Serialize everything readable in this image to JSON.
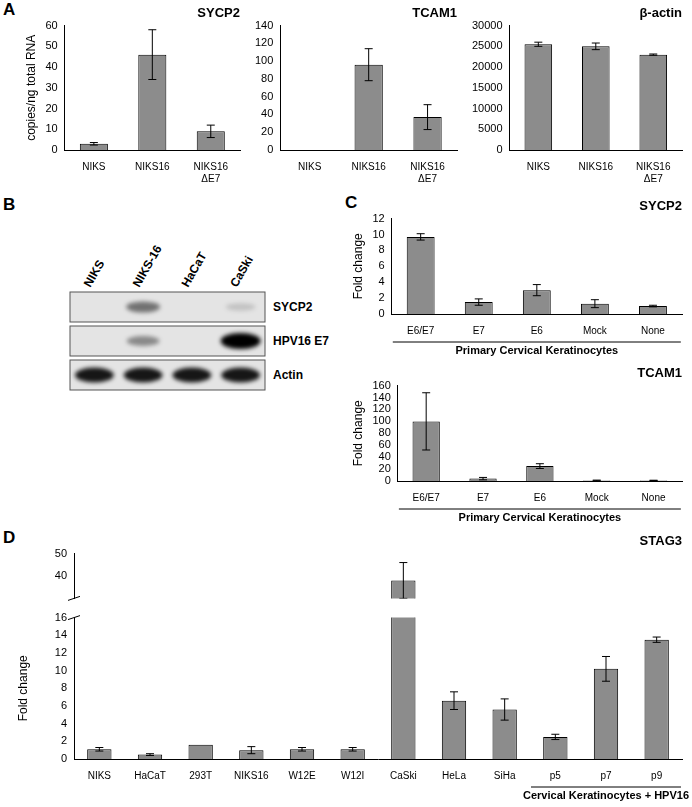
{
  "chart_data": [
    {
      "panel": "A",
      "type": "bar",
      "title": "SYCP2",
      "ylabel": "copies/ng total RNA",
      "categories": [
        "NIKS",
        "NIKS16",
        [
          "NIKS16",
          "ΔE7"
        ]
      ],
      "values": [
        3,
        46,
        9
      ],
      "errors": [
        0.6,
        12,
        3
      ],
      "ylim": [
        0,
        60
      ],
      "yticks": [
        0,
        10,
        20,
        30,
        40,
        50,
        60
      ],
      "color": "#8c8c8c",
      "grid": false
    },
    {
      "panel": "A",
      "type": "bar",
      "title": "TCAM1",
      "categories": [
        "NIKS",
        "NIKS16",
        [
          "NIKS16",
          "ΔE7"
        ]
      ],
      "values": [
        0,
        96,
        37
      ],
      "errors": [
        null,
        18,
        14
      ],
      "ylim": [
        0,
        140
      ],
      "yticks": [
        0,
        20,
        40,
        60,
        80,
        100,
        120,
        140
      ],
      "color": "#8c8c8c",
      "grid": false
    },
    {
      "panel": "A",
      "type": "bar",
      "title": "β-actin",
      "categories": [
        "NIKS",
        "NIKS16",
        [
          "NIKS16",
          "ΔE7"
        ]
      ],
      "values": [
        25500,
        25000,
        23000
      ],
      "errors": [
        500,
        800,
        150
      ],
      "ylim": [
        0,
        30000
      ],
      "yticks": [
        0,
        5000,
        10000,
        15000,
        20000,
        25000,
        30000
      ],
      "color": "#8c8c8c",
      "grid": false
    },
    {
      "panel": "C",
      "type": "bar",
      "title": "SYCP2",
      "ylabel": "Fold change",
      "categories": [
        "E6/E7",
        "E7",
        "E6",
        "Mock",
        "None"
      ],
      "values": [
        9.7,
        1.5,
        3,
        1.3,
        1
      ],
      "errors": [
        0.4,
        0.4,
        0.7,
        0.5,
        0.1
      ],
      "ylim": [
        0,
        12
      ],
      "yticks": [
        0,
        2,
        4,
        6,
        8,
        10,
        12
      ],
      "color": "#8c8c8c",
      "grid": false,
      "group": {
        "label": "Primary Cervical Keratinocytes",
        "from": "E6/E7",
        "to": "None"
      }
    },
    {
      "panel": "C",
      "type": "bar",
      "title": "TCAM1",
      "ylabel": "Fold change",
      "categories": [
        "E6/E7",
        "E7",
        "E6",
        "Mock",
        "None"
      ],
      "values": [
        100,
        4,
        25,
        1,
        1
      ],
      "errors": [
        48,
        2,
        4,
        0.5,
        0.3
      ],
      "ylim": [
        0,
        160
      ],
      "yticks": [
        0,
        20,
        40,
        60,
        80,
        100,
        120,
        140,
        160
      ],
      "color": "#8c8c8c",
      "grid": false,
      "group": {
        "label": "Primary Cervical Keratinocytes",
        "from": "E6/E7",
        "to": "None"
      }
    },
    {
      "panel": "D",
      "type": "bar",
      "title": "STAG3",
      "ylabel": "Fold change",
      "categories": [
        "NIKS",
        "HaCaT",
        "293T",
        "NIKS16",
        "W12E",
        "W12I",
        "CaSki",
        "HeLa",
        "SiHa",
        "p5",
        "p7",
        "p9"
      ],
      "values": [
        1.1,
        0.5,
        1.6,
        1.0,
        1.1,
        1.1,
        38,
        6.6,
        5.6,
        2.5,
        10.2,
        13.5
      ],
      "errors": [
        0.2,
        0.1,
        null,
        0.4,
        0.2,
        0.2,
        8,
        1,
        1.2,
        0.3,
        1.4,
        0.3
      ],
      "segments": [
        {
          "ylim": [
            30,
            50
          ],
          "yticks": [
            40,
            50
          ]
        },
        {
          "ylim": [
            0,
            16
          ],
          "yticks": [
            0,
            2,
            4,
            6,
            8,
            10,
            12,
            14,
            16
          ]
        }
      ],
      "color": "#8c8c8c",
      "grid": false,
      "group": {
        "label": "Cervical Keratinocytes + HPV16",
        "from": "p5",
        "to": "p9"
      }
    }
  ],
  "blot": {
    "panel": "B",
    "lanes": [
      "NIKS",
      "NIKS-16",
      "HaCaT",
      "CaSki"
    ],
    "rows": [
      {
        "label": "SYCP2",
        "intensity": [
          0,
          0.5,
          0,
          0.15
        ]
      },
      {
        "label": "HPV16 E7",
        "intensity": [
          0,
          0.4,
          0,
          1
        ]
      },
      {
        "label": "Actin",
        "intensity": [
          0.9,
          0.9,
          0.9,
          0.9
        ]
      }
    ]
  }
}
